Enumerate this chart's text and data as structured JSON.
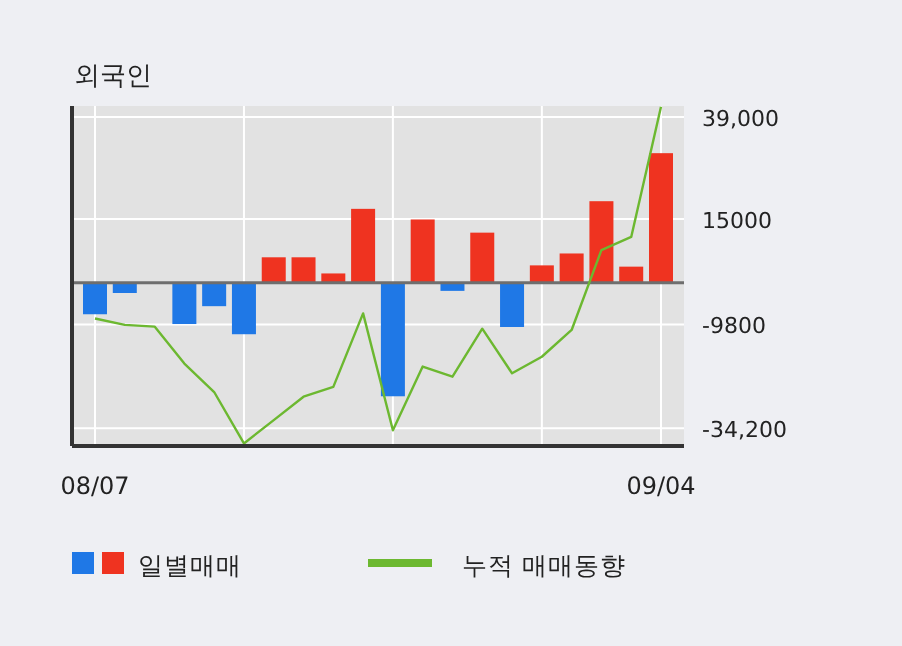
{
  "chart_data": {
    "type": "bar",
    "title": "외국인",
    "categories": [
      "08/07",
      null,
      null,
      null,
      null,
      null,
      null,
      null,
      null,
      null,
      null,
      null,
      null,
      null,
      null,
      null,
      null,
      null,
      null,
      "09/04"
    ],
    "series": [
      {
        "name": "일별매매",
        "colors": [
          "#1f78e6",
          "#1f78e6",
          "#1f78e6",
          "#1f78e6",
          "#1f78e6",
          "#1f78e6",
          "#ef3320",
          "#ef3320",
          "#ef3320",
          "#ef3320",
          "#1f78e6",
          "#ef3320",
          "#1f78e6",
          "#ef3320",
          "#1f78e6",
          "#ef3320",
          "#ef3320",
          "#ef3320",
          "#ef3320",
          "#ef3320"
        ],
        "values": [
          -7400,
          -2400,
          0,
          -9700,
          -5500,
          -12100,
          6000,
          6000,
          2200,
          17400,
          -26700,
          14900,
          -1900,
          11800,
          -10400,
          4100,
          6900,
          19200,
          3800,
          30500
        ]
      },
      {
        "name": "누적 매매동향",
        "type": "line",
        "color": "#6cb830",
        "values": [
          -8400,
          -9900,
          -10300,
          -19000,
          -25700,
          -37800,
          -32300,
          -26800,
          -24500,
          -7200,
          -34700,
          -19700,
          -22100,
          -10800,
          -21300,
          -17400,
          -11100,
          7700,
          10800,
          41400
        ]
      }
    ],
    "ylim": [
      -38400,
      41600
    ],
    "yticks": [
      {
        "value": 39000,
        "label": "39,000"
      },
      15000,
      -9800,
      {
        "value": -34200,
        "label": "-34,200"
      }
    ],
    "ref_lines": [
      {
        "axis": "y",
        "value": 0,
        "color": "#6e6e6e"
      }
    ],
    "grid": true,
    "legend": "bottom"
  }
}
